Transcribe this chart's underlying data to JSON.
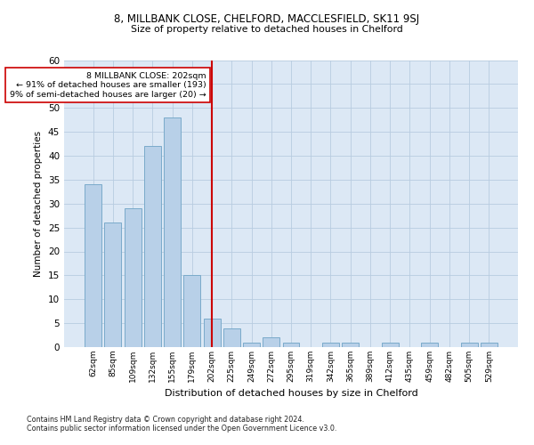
{
  "title1": "8, MILLBANK CLOSE, CHELFORD, MACCLESFIELD, SK11 9SJ",
  "title2": "Size of property relative to detached houses in Chelford",
  "xlabel": "Distribution of detached houses by size in Chelford",
  "ylabel": "Number of detached properties",
  "footnote1": "Contains HM Land Registry data © Crown copyright and database right 2024.",
  "footnote2": "Contains public sector information licensed under the Open Government Licence v3.0.",
  "annotation_line1": "8 MILLBANK CLOSE: 202sqm",
  "annotation_line2": "← 91% of detached houses are smaller (193)",
  "annotation_line3": "9% of semi-detached houses are larger (20) →",
  "bar_labels": [
    "62sqm",
    "85sqm",
    "109sqm",
    "132sqm",
    "155sqm",
    "179sqm",
    "202sqm",
    "225sqm",
    "249sqm",
    "272sqm",
    "295sqm",
    "319sqm",
    "342sqm",
    "365sqm",
    "389sqm",
    "412sqm",
    "435sqm",
    "459sqm",
    "482sqm",
    "505sqm",
    "529sqm"
  ],
  "bar_values": [
    34,
    26,
    29,
    42,
    48,
    15,
    6,
    4,
    1,
    2,
    1,
    0,
    1,
    1,
    0,
    1,
    0,
    1,
    0,
    1,
    1
  ],
  "bar_color": "#b8d0e8",
  "bar_edge_color": "#7aaaca",
  "highlight_bar_index": 6,
  "highlight_color": "#cc0000",
  "bg_color": "#dce8f5",
  "grid_color": "#b8cce0",
  "ylim": [
    0,
    60
  ],
  "yticks": [
    0,
    5,
    10,
    15,
    20,
    25,
    30,
    35,
    40,
    45,
    50,
    55,
    60
  ]
}
